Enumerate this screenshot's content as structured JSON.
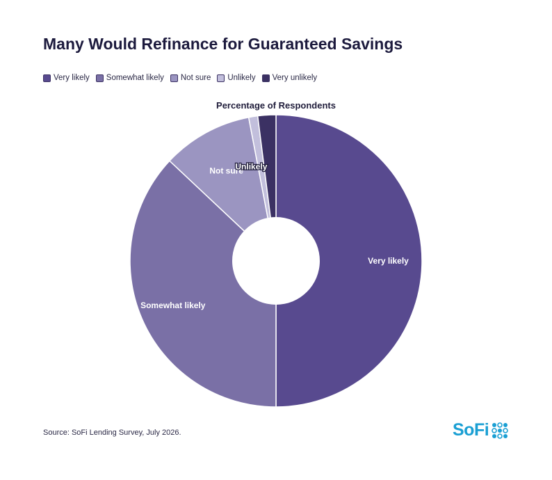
{
  "title": "Many Would Refinance for Guaranteed Savings",
  "source": "Source: SoFi Lending Survey, July 2026.",
  "logo": {
    "text": "SoFi",
    "color": "#1a9fd3"
  },
  "chart_data": {
    "type": "pie",
    "title": "Percentage of Respondents",
    "legend_position": "top-left",
    "donut": true,
    "slices": [
      {
        "label": "Very likely",
        "value": 50,
        "color": "#584a8f"
      },
      {
        "label": "Somewhat likely",
        "value": 37,
        "color": "#7a70a6"
      },
      {
        "label": "Not sure",
        "value": 10,
        "color": "#9b95c1"
      },
      {
        "label": "Unlikely",
        "value": 1,
        "color": "#c2bfdc"
      },
      {
        "label": "Very unlikely",
        "value": 2,
        "color": "#3b3163"
      }
    ]
  }
}
